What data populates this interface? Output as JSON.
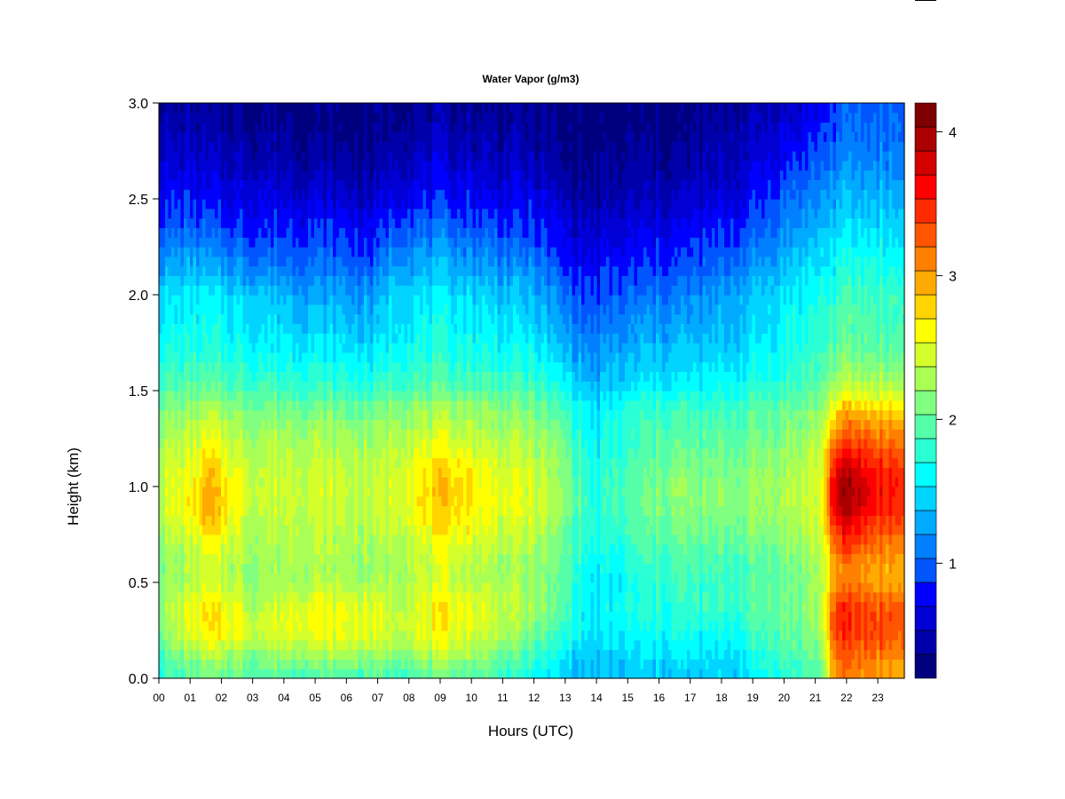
{
  "chart_data": {
    "type": "heatmap",
    "title": "Water Vapor (g/m3)",
    "xlabel": "Hours (UTC)",
    "ylabel": "Height (km)",
    "x_ticks": [
      "00",
      "01",
      "02",
      "03",
      "04",
      "05",
      "06",
      "07",
      "08",
      "09",
      "10",
      "11",
      "12",
      "13",
      "14",
      "15",
      "16",
      "17",
      "18",
      "19",
      "20",
      "21",
      "22",
      "23"
    ],
    "xlim": [
      0,
      23.85
    ],
    "y_ticks": [
      "0.0",
      "0.5",
      "1.0",
      "1.5",
      "2.0",
      "2.5",
      "3.0"
    ],
    "ylim": [
      0.0,
      3.0
    ],
    "colorbar": {
      "ticks": [
        "1",
        "2",
        "3",
        "4"
      ],
      "range": [
        0.2,
        4.2
      ],
      "levels": 20,
      "colors": [
        "#00007F",
        "#0000AA",
        "#0000D4",
        "#0000FF",
        "#0055FF",
        "#0080FF",
        "#00AAFF",
        "#00D4FF",
        "#00FFFF",
        "#2BFFD4",
        "#55FFAA",
        "#80FF80",
        "#AAFF55",
        "#D4FF2B",
        "#FFFF00",
        "#FFD400",
        "#FFAA00",
        "#FF8000",
        "#FF5500",
        "#FF2B00",
        "#FF0000",
        "#D40000",
        "#AA0000",
        "#7F0000"
      ]
    },
    "heights_km": [
      0.0,
      0.1,
      0.2,
      0.3,
      0.4,
      0.5,
      0.6,
      0.7,
      0.8,
      0.9,
      1.0,
      1.1,
      1.2,
      1.3,
      1.4,
      1.5,
      1.6,
      1.7,
      1.8,
      1.9,
      2.0,
      2.1,
      2.2,
      2.3,
      2.4,
      2.5,
      2.6,
      2.7,
      2.8,
      2.9,
      3.0
    ],
    "profiles": [
      {
        "hour": 0.0,
        "values": [
          1.8,
          1.9,
          2.1,
          2.2,
          2.2,
          2.1,
          2.1,
          2.2,
          2.3,
          2.4,
          2.4,
          2.4,
          2.3,
          2.2,
          2.1,
          1.9,
          1.8,
          1.7,
          1.6,
          1.55,
          1.5,
          1.3,
          1.15,
          1.0,
          0.9,
          0.8,
          0.7,
          0.6,
          0.5,
          0.45,
          0.4
        ]
      },
      {
        "hour": 1.0,
        "values": [
          1.9,
          2.1,
          2.4,
          2.5,
          2.5,
          2.3,
          2.3,
          2.4,
          2.5,
          2.6,
          2.6,
          2.5,
          2.45,
          2.35,
          2.2,
          2.0,
          1.85,
          1.75,
          1.65,
          1.6,
          1.55,
          1.35,
          1.2,
          1.05,
          0.9,
          0.8,
          0.7,
          0.6,
          0.5,
          0.45,
          0.4
        ]
      },
      {
        "hour": 1.6,
        "values": [
          2.0,
          2.2,
          2.6,
          2.7,
          2.6,
          2.4,
          2.4,
          2.6,
          2.8,
          2.9,
          2.9,
          2.8,
          2.6,
          2.45,
          2.3,
          2.0,
          1.85,
          1.75,
          1.65,
          1.6,
          1.55,
          1.35,
          1.2,
          1.0,
          0.85,
          0.75,
          0.65,
          0.55,
          0.45,
          0.4,
          0.35
        ]
      },
      {
        "hour": 2.5,
        "values": [
          2.0,
          2.2,
          2.5,
          2.6,
          2.5,
          2.3,
          2.3,
          2.4,
          2.5,
          2.6,
          2.6,
          2.5,
          2.4,
          2.3,
          2.2,
          1.95,
          1.8,
          1.7,
          1.6,
          1.55,
          1.45,
          1.25,
          1.1,
          0.95,
          0.8,
          0.7,
          0.6,
          0.5,
          0.45,
          0.4,
          0.35
        ]
      },
      {
        "hour": 3.0,
        "values": [
          1.9,
          2.1,
          2.4,
          2.4,
          2.3,
          2.2,
          2.2,
          2.3,
          2.3,
          2.4,
          2.4,
          2.4,
          2.3,
          2.2,
          2.1,
          1.9,
          1.75,
          1.65,
          1.55,
          1.5,
          1.45,
          1.2,
          1.05,
          0.9,
          0.8,
          0.7,
          0.6,
          0.5,
          0.45,
          0.4,
          0.35
        ]
      },
      {
        "hour": 4.5,
        "values": [
          1.9,
          2.2,
          2.5,
          2.6,
          2.5,
          2.3,
          2.3,
          2.35,
          2.4,
          2.45,
          2.45,
          2.4,
          2.35,
          2.25,
          2.1,
          1.9,
          1.75,
          1.6,
          1.5,
          1.4,
          1.3,
          1.15,
          1.0,
          0.9,
          0.8,
          0.65,
          0.55,
          0.45,
          0.4,
          0.35,
          0.3
        ]
      },
      {
        "hour": 6.0,
        "values": [
          1.9,
          2.2,
          2.5,
          2.55,
          2.5,
          2.3,
          2.25,
          2.3,
          2.35,
          2.4,
          2.4,
          2.35,
          2.3,
          2.2,
          2.05,
          1.85,
          1.7,
          1.55,
          1.45,
          1.35,
          1.25,
          1.1,
          0.95,
          0.85,
          0.75,
          0.6,
          0.5,
          0.4,
          0.35,
          0.3,
          0.3
        ]
      },
      {
        "hour": 6.9,
        "values": [
          1.9,
          2.15,
          2.45,
          2.5,
          2.45,
          2.25,
          2.2,
          2.25,
          2.3,
          2.35,
          2.35,
          2.3,
          2.25,
          2.15,
          2.0,
          1.8,
          1.65,
          1.5,
          1.4,
          1.3,
          1.2,
          1.05,
          0.9,
          0.8,
          0.7,
          0.55,
          0.45,
          0.4,
          0.35,
          0.3,
          0.3
        ]
      },
      {
        "hour": 7.5,
        "values": [
          1.9,
          2.1,
          2.4,
          2.45,
          2.4,
          2.3,
          2.3,
          2.35,
          2.4,
          2.5,
          2.5,
          2.45,
          2.4,
          2.3,
          2.2,
          1.95,
          1.8,
          1.7,
          1.6,
          1.55,
          1.5,
          1.35,
          1.2,
          1.05,
          0.9,
          0.75,
          0.65,
          0.55,
          0.45,
          0.4,
          0.35
        ]
      },
      {
        "hour": 9.3,
        "values": [
          2.0,
          2.25,
          2.55,
          2.65,
          2.6,
          2.45,
          2.45,
          2.55,
          2.7,
          2.85,
          2.85,
          2.75,
          2.55,
          2.4,
          2.25,
          2.0,
          1.85,
          1.75,
          1.65,
          1.6,
          1.55,
          1.4,
          1.25,
          1.1,
          0.95,
          0.8,
          0.7,
          0.6,
          0.5,
          0.45,
          0.4
        ]
      },
      {
        "hour": 10.5,
        "values": [
          1.9,
          2.1,
          2.35,
          2.45,
          2.45,
          2.3,
          2.3,
          2.4,
          2.5,
          2.6,
          2.6,
          2.5,
          2.4,
          2.3,
          2.2,
          1.95,
          1.8,
          1.7,
          1.6,
          1.5,
          1.45,
          1.3,
          1.15,
          1.0,
          0.85,
          0.75,
          0.65,
          0.55,
          0.45,
          0.4,
          0.35
        ]
      },
      {
        "hour": 12.0,
        "values": [
          1.6,
          1.8,
          2.0,
          2.2,
          2.25,
          2.2,
          2.2,
          2.3,
          2.4,
          2.45,
          2.45,
          2.4,
          2.3,
          2.2,
          2.1,
          1.9,
          1.75,
          1.6,
          1.5,
          1.4,
          1.35,
          1.2,
          1.05,
          0.9,
          0.8,
          0.7,
          0.6,
          0.5,
          0.45,
          0.4,
          0.35
        ]
      },
      {
        "hour": 13.0,
        "values": [
          1.45,
          1.5,
          1.7,
          1.85,
          1.9,
          1.9,
          1.95,
          2.0,
          2.05,
          2.15,
          2.15,
          2.1,
          2.05,
          1.95,
          1.85,
          1.65,
          1.5,
          1.35,
          1.25,
          1.15,
          1.05,
          0.9,
          0.8,
          0.7,
          0.6,
          0.5,
          0.4,
          0.35,
          0.3,
          0.3,
          0.25
        ]
      },
      {
        "hour": 13.9,
        "values": [
          1.3,
          1.35,
          1.45,
          1.5,
          1.5,
          1.55,
          1.6,
          1.65,
          1.7,
          1.7,
          1.7,
          1.65,
          1.6,
          1.55,
          1.5,
          1.35,
          1.25,
          1.15,
          1.05,
          0.95,
          0.9,
          0.8,
          0.7,
          0.6,
          0.5,
          0.4,
          0.35,
          0.3,
          0.25,
          0.25,
          0.25
        ]
      },
      {
        "hour": 14.6,
        "values": [
          1.35,
          1.4,
          1.5,
          1.6,
          1.65,
          1.55,
          1.6,
          1.7,
          1.8,
          1.85,
          1.85,
          1.8,
          1.75,
          1.7,
          1.65,
          1.45,
          1.35,
          1.25,
          1.15,
          1.05,
          0.95,
          0.85,
          0.75,
          0.65,
          0.55,
          0.45,
          0.4,
          0.35,
          0.3,
          0.25,
          0.25
        ]
      },
      {
        "hour": 15.5,
        "values": [
          1.4,
          1.45,
          1.6,
          1.7,
          1.75,
          1.75,
          1.8,
          1.9,
          1.95,
          2.0,
          2.0,
          1.95,
          1.9,
          1.85,
          1.8,
          1.6,
          1.45,
          1.35,
          1.25,
          1.15,
          1.05,
          0.9,
          0.8,
          0.7,
          0.6,
          0.5,
          0.45,
          0.4,
          0.35,
          0.3,
          0.3
        ]
      },
      {
        "hour": 16.5,
        "values": [
          1.45,
          1.5,
          1.65,
          1.75,
          1.8,
          1.85,
          1.9,
          2.0,
          2.1,
          2.15,
          2.2,
          2.1,
          2.0,
          1.95,
          1.85,
          1.65,
          1.5,
          1.4,
          1.3,
          1.2,
          1.1,
          0.95,
          0.85,
          0.75,
          0.65,
          0.55,
          0.45,
          0.4,
          0.35,
          0.3,
          0.3
        ]
      },
      {
        "hour": 17.5,
        "values": [
          1.4,
          1.45,
          1.55,
          1.7,
          1.8,
          1.8,
          1.85,
          1.95,
          2.05,
          2.1,
          2.1,
          2.05,
          1.95,
          1.9,
          1.8,
          1.6,
          1.5,
          1.4,
          1.3,
          1.2,
          1.15,
          1.0,
          0.9,
          0.8,
          0.7,
          0.6,
          0.5,
          0.45,
          0.4,
          0.35,
          0.3
        ]
      },
      {
        "hour": 18.5,
        "values": [
          1.45,
          1.5,
          1.65,
          1.75,
          1.85,
          1.85,
          1.9,
          2.0,
          2.1,
          2.15,
          2.15,
          2.1,
          2.05,
          1.95,
          1.9,
          1.7,
          1.6,
          1.5,
          1.4,
          1.35,
          1.3,
          1.15,
          1.0,
          0.9,
          0.8,
          0.7,
          0.6,
          0.55,
          0.5,
          0.45,
          0.4
        ]
      },
      {
        "hour": 19.5,
        "values": [
          1.7,
          1.8,
          1.9,
          2.0,
          2.0,
          2.0,
          2.0,
          2.1,
          2.2,
          2.25,
          2.25,
          2.2,
          2.15,
          2.05,
          2.0,
          1.8,
          1.7,
          1.6,
          1.55,
          1.5,
          1.45,
          1.35,
          1.2,
          1.1,
          1.0,
          0.9,
          0.8,
          0.7,
          0.6,
          0.55,
          0.5
        ]
      },
      {
        "hour": 20.5,
        "values": [
          1.8,
          1.9,
          2.0,
          2.1,
          2.1,
          2.1,
          2.1,
          2.2,
          2.3,
          2.35,
          2.35,
          2.3,
          2.2,
          2.15,
          2.05,
          1.9,
          1.8,
          1.75,
          1.7,
          1.65,
          1.6,
          1.5,
          1.4,
          1.3,
          1.2,
          1.05,
          0.95,
          0.85,
          0.75,
          0.65,
          0.6
        ]
      },
      {
        "hour": 21.2,
        "values": [
          2.0,
          2.1,
          2.2,
          2.3,
          2.3,
          2.3,
          2.3,
          2.35,
          2.45,
          2.5,
          2.5,
          2.45,
          2.4,
          2.3,
          2.2,
          2.0,
          1.9,
          1.85,
          1.8,
          1.75,
          1.7,
          1.6,
          1.5,
          1.4,
          1.3,
          1.2,
          1.1,
          1.0,
          0.9,
          0.8,
          0.75
        ]
      },
      {
        "hour": 21.6,
        "values": [
          3.0,
          3.1,
          3.3,
          3.4,
          3.3,
          3.0,
          3.0,
          3.2,
          3.5,
          3.7,
          3.8,
          3.6,
          3.3,
          3.0,
          2.7,
          2.35,
          2.15,
          2.0,
          1.9,
          1.85,
          1.8,
          1.7,
          1.6,
          1.5,
          1.4,
          1.3,
          1.2,
          1.1,
          1.0,
          0.95,
          0.9
        ]
      },
      {
        "hour": 22.0,
        "values": [
          3.1,
          3.2,
          3.4,
          3.5,
          3.4,
          3.1,
          3.1,
          3.4,
          3.7,
          3.9,
          4.0,
          3.8,
          3.5,
          3.2,
          2.9,
          2.45,
          2.2,
          2.05,
          1.95,
          1.9,
          1.85,
          1.75,
          1.65,
          1.55,
          1.45,
          1.35,
          1.25,
          1.15,
          1.05,
          1.0,
          0.95
        ]
      },
      {
        "hour": 23.0,
        "values": [
          3.0,
          3.1,
          3.3,
          3.35,
          3.25,
          3.0,
          3.0,
          3.2,
          3.4,
          3.55,
          3.6,
          3.5,
          3.3,
          3.1,
          2.8,
          2.4,
          2.2,
          2.05,
          1.95,
          1.9,
          1.85,
          1.75,
          1.65,
          1.55,
          1.45,
          1.35,
          1.25,
          1.15,
          1.1,
          1.05,
          1.0
        ]
      },
      {
        "hour": 23.85,
        "values": [
          2.9,
          3.0,
          3.2,
          3.3,
          3.2,
          2.95,
          2.95,
          3.1,
          3.3,
          3.45,
          3.5,
          3.4,
          3.2,
          3.0,
          2.75,
          2.35,
          2.15,
          2.0,
          1.9,
          1.85,
          1.8,
          1.7,
          1.6,
          1.5,
          1.4,
          1.3,
          1.2,
          1.1,
          1.05,
          1.0,
          0.95
        ]
      }
    ]
  }
}
